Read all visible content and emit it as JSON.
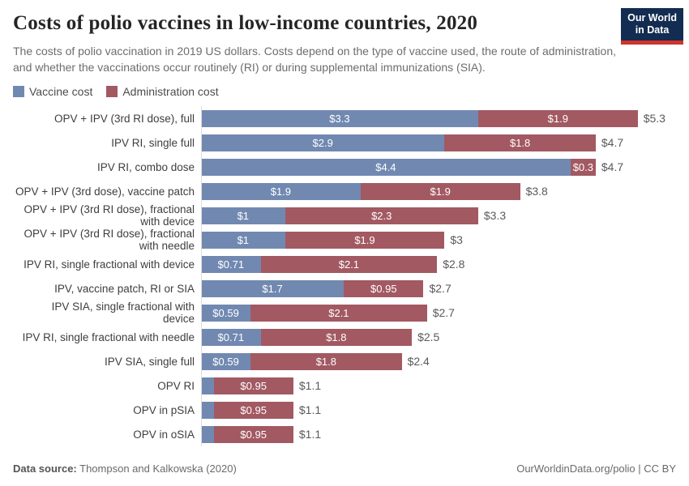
{
  "header": {
    "title": "Costs of polio vaccines in low-income countries, 2020",
    "subtitle": "The costs of polio vaccination in 2019 US dollars. Costs depend on the type of vaccine used, the route of administration, and whether the vaccinations occur routinely (RI) or during supplemental immunizations (SIA).",
    "logo_line1": "Our World",
    "logo_line2": "in Data",
    "logo_colors": {
      "background": "#132c51",
      "stripe": "#d0342c"
    }
  },
  "legend": [
    {
      "label": "Vaccine cost",
      "color": "#7189b1"
    },
    {
      "label": "Administration cost",
      "color": "#a25962"
    }
  ],
  "chart_data": {
    "type": "bar",
    "orientation": "horizontal",
    "stacked": true,
    "unit": "2019 US dollars",
    "x_max": 5.3,
    "grid": false,
    "legend_position": "top-left",
    "series_names": [
      "Vaccine cost",
      "Administration cost"
    ],
    "colors": {
      "vaccine": "#7189b1",
      "administration": "#a25962"
    },
    "rows": [
      {
        "label": "OPV + IPV (3rd RI dose), full",
        "vaccine": 3.3,
        "vaccine_label": "$3.3",
        "administration": 1.9,
        "administration_label": "$1.9",
        "total": 5.3,
        "total_label": "$5.3"
      },
      {
        "label": "IPV RI, single full",
        "vaccine": 2.9,
        "vaccine_label": "$2.9",
        "administration": 1.8,
        "administration_label": "$1.8",
        "total": 4.7,
        "total_label": "$4.7"
      },
      {
        "label": "IPV RI, combo dose",
        "vaccine": 4.4,
        "vaccine_label": "$4.4",
        "administration": 0.3,
        "administration_label": "$0.3",
        "total": 4.7,
        "total_label": "$4.7"
      },
      {
        "label": "OPV + IPV (3rd dose), vaccine patch",
        "vaccine": 1.9,
        "vaccine_label": "$1.9",
        "administration": 1.9,
        "administration_label": "$1.9",
        "total": 3.8,
        "total_label": "$3.8"
      },
      {
        "label": "OPV + IPV (3rd RI dose), fractional\nwith device",
        "vaccine": 1.0,
        "vaccine_label": "$1",
        "administration": 2.3,
        "administration_label": "$2.3",
        "total": 3.3,
        "total_label": "$3.3"
      },
      {
        "label": "OPV + IPV (3rd RI dose), fractional\nwith needle",
        "vaccine": 1.0,
        "vaccine_label": "$1",
        "administration": 1.9,
        "administration_label": "$1.9",
        "total": 3.0,
        "total_label": "$3"
      },
      {
        "label": "IPV RI, single fractional with device",
        "vaccine": 0.71,
        "vaccine_label": "$0.71",
        "administration": 2.1,
        "administration_label": "$2.1",
        "total": 2.8,
        "total_label": "$2.8"
      },
      {
        "label": "IPV, vaccine patch, RI or SIA",
        "vaccine": 1.7,
        "vaccine_label": "$1.7",
        "administration": 0.95,
        "administration_label": "$0.95",
        "total": 2.7,
        "total_label": "$2.7"
      },
      {
        "label": "IPV SIA, single fractional with\ndevice",
        "vaccine": 0.59,
        "vaccine_label": "$0.59",
        "administration": 2.1,
        "administration_label": "$2.1",
        "total": 2.7,
        "total_label": "$2.7"
      },
      {
        "label": "IPV RI, single fractional with needle",
        "vaccine": 0.71,
        "vaccine_label": "$0.71",
        "administration": 1.8,
        "administration_label": "$1.8",
        "total": 2.5,
        "total_label": "$2.5"
      },
      {
        "label": "IPV SIA, single full",
        "vaccine": 0.59,
        "vaccine_label": "$0.59",
        "administration": 1.8,
        "administration_label": "$1.8",
        "total": 2.4,
        "total_label": "$2.4"
      },
      {
        "label": "OPV RI",
        "vaccine": 0.15,
        "vaccine_label": "",
        "administration": 0.95,
        "administration_label": "$0.95",
        "total": 1.1,
        "total_label": "$1.1"
      },
      {
        "label": "OPV in pSIA",
        "vaccine": 0.15,
        "vaccine_label": "",
        "administration": 0.95,
        "administration_label": "$0.95",
        "total": 1.1,
        "total_label": "$1.1"
      },
      {
        "label": "OPV in oSIA",
        "vaccine": 0.15,
        "vaccine_label": "",
        "administration": 0.95,
        "administration_label": "$0.95",
        "total": 1.1,
        "total_label": "$1.1"
      }
    ]
  },
  "footer": {
    "source_label": "Data source:",
    "source_value": "Thompson and Kalkowska (2020)",
    "credit": "OurWorldinData.org/polio | CC BY"
  }
}
